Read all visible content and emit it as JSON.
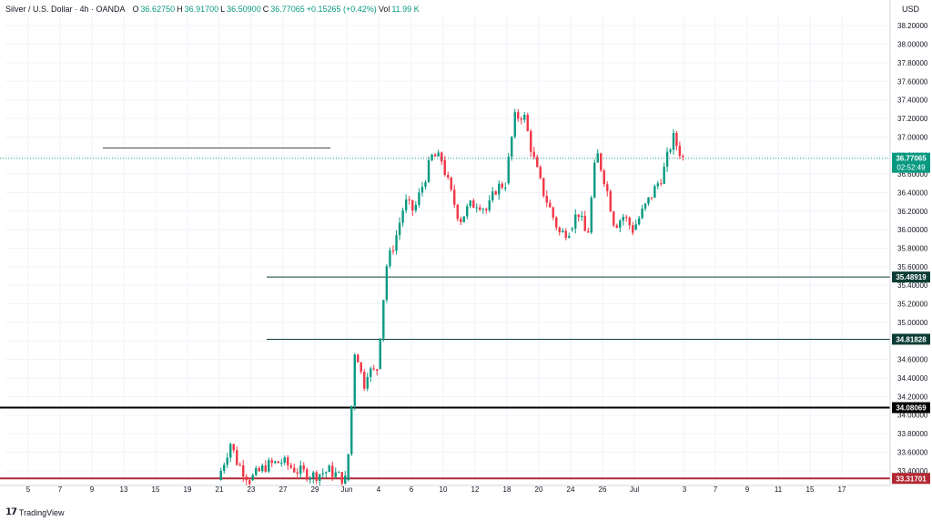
{
  "header": {
    "symbol": "Silver / U.S. Dollar · 4h · OANDA",
    "open_label": "O",
    "open": "36.62750",
    "high_label": "H",
    "high": "36.91700",
    "low_label": "L",
    "low": "36.50900",
    "close_label": "C",
    "close": "36.77065",
    "change": "+0.15265 (+0.42%)",
    "vol_label": "Vol",
    "vol": "11.99 K"
  },
  "currency": "USD",
  "brand": "TradingView",
  "colors": {
    "up": "#089981",
    "down": "#f23645",
    "black_line": "#000000",
    "red_line": "#b22833",
    "dark_green": "#0b3d34",
    "grid": "#f0f3fa"
  },
  "chart_data": {
    "type": "candlestick",
    "ylim": [
      33.3,
      38.3
    ],
    "y_ticks": [
      "38.20000",
      "38.00000",
      "37.80000",
      "37.60000",
      "37.40000",
      "37.20000",
      "37.00000",
      "36.80000",
      "36.60000",
      "36.40000",
      "36.20000",
      "36.00000",
      "35.80000",
      "35.60000",
      "35.40000",
      "35.20000",
      "35.00000",
      "34.80000",
      "34.60000",
      "34.40000",
      "34.20000",
      "34.00000",
      "33.80000",
      "33.60000",
      "33.40000"
    ],
    "x_ticks": [
      "5",
      "7",
      "9",
      "13",
      "15",
      "19",
      "21",
      "23",
      "27",
      "29",
      "Jun",
      "4",
      "6",
      "10",
      "12",
      "18",
      "20",
      "24",
      "26",
      "Jul",
      "3",
      "7",
      "9",
      "11",
      "15",
      "17"
    ],
    "current_price": {
      "value": 36.77065,
      "label": "36.77065",
      "countdown": "02:52:49"
    },
    "horizontal_levels": [
      {
        "value": 36.88,
        "color": "#4a4a4a",
        "x_from_tick": "29",
        "x_to_tick": "9"
      },
      {
        "value": 35.48919,
        "label": "35.48919",
        "color": "#0b3d34",
        "x_from_tick": "23"
      },
      {
        "value": 34.81828,
        "label": "34.81828",
        "color": "#0b3d34",
        "x_from_tick": "23"
      },
      {
        "value": 34.08069,
        "label": "34.08069",
        "color": "#000000"
      },
      {
        "value": 33.31701,
        "label": "33.31701",
        "color": "#b22833"
      }
    ],
    "candles_segments": [
      {
        "x_start_tick": "21",
        "x_end_tick": "23",
        "points": [
          33.3,
          33.5,
          33.7,
          33.5,
          33.4,
          33.3
        ]
      },
      {
        "x_start_tick": "23",
        "x_end_tick": "Jun",
        "points": [
          33.3,
          33.45,
          33.5,
          33.4,
          33.35,
          33.4,
          33.3
        ]
      },
      {
        "x_start_tick": "Jun",
        "x_end_tick": "4",
        "points": [
          33.3,
          33.7,
          34.7,
          34.6,
          34.3,
          34.5,
          34.45,
          34.5
        ]
      },
      {
        "x_start_tick": "4",
        "x_end_tick": "10",
        "points": [
          34.5,
          35.6,
          35.9,
          36.3,
          36.2,
          36.5,
          36.8,
          36.75
        ]
      },
      {
        "x_start_tick": "10",
        "x_end_tick": "18",
        "points": [
          36.75,
          36.4,
          36.1,
          36.25,
          36.3,
          36.2,
          36.45,
          36.5
        ]
      },
      {
        "x_start_tick": "18",
        "x_end_tick": "24",
        "points": [
          36.5,
          37.2,
          37.25,
          36.8,
          36.45,
          36.2,
          35.95,
          36.0
        ]
      },
      {
        "x_start_tick": "24",
        "x_end_tick": "Jul",
        "points": [
          36.0,
          36.2,
          35.9,
          36.85,
          36.5,
          36.05,
          36.15,
          36.0
        ]
      },
      {
        "x_start_tick": "Jul",
        "x_end_tick": "3",
        "points": [
          36.0,
          36.2,
          36.4,
          36.6,
          37.0,
          36.77
        ]
      }
    ]
  }
}
